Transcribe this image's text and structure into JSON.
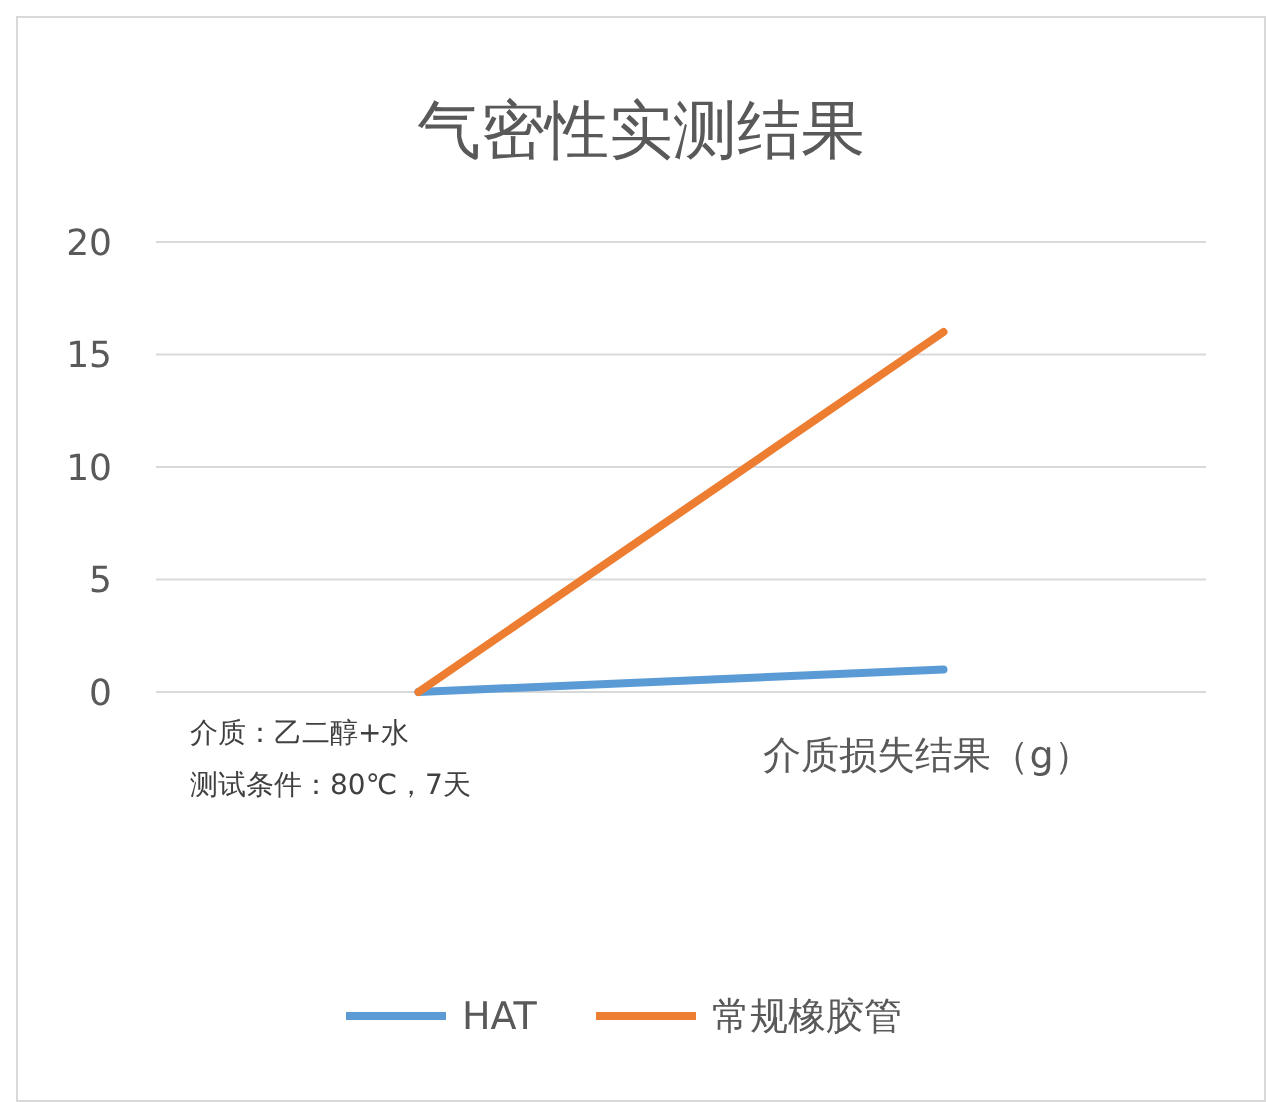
{
  "chart_data": {
    "type": "line",
    "title": "气密性实测结果",
    "categories": [
      null,
      "介质损失结果（g）"
    ],
    "series": [
      {
        "name": "HAT",
        "color": "#5b9bd5",
        "values": [
          0,
          1
        ]
      },
      {
        "name": "常规橡胶管",
        "color": "#ed7d31",
        "values": [
          0,
          16
        ]
      }
    ],
    "ylim": [
      0,
      20
    ],
    "yticks": [
      0,
      5,
      10,
      15,
      20
    ],
    "grid": "y",
    "legend": "bottom",
    "marker": "none",
    "line_style": "solid",
    "annotations": [
      "介质：乙二醇+水",
      "测试条件：80℃，7天"
    ]
  }
}
